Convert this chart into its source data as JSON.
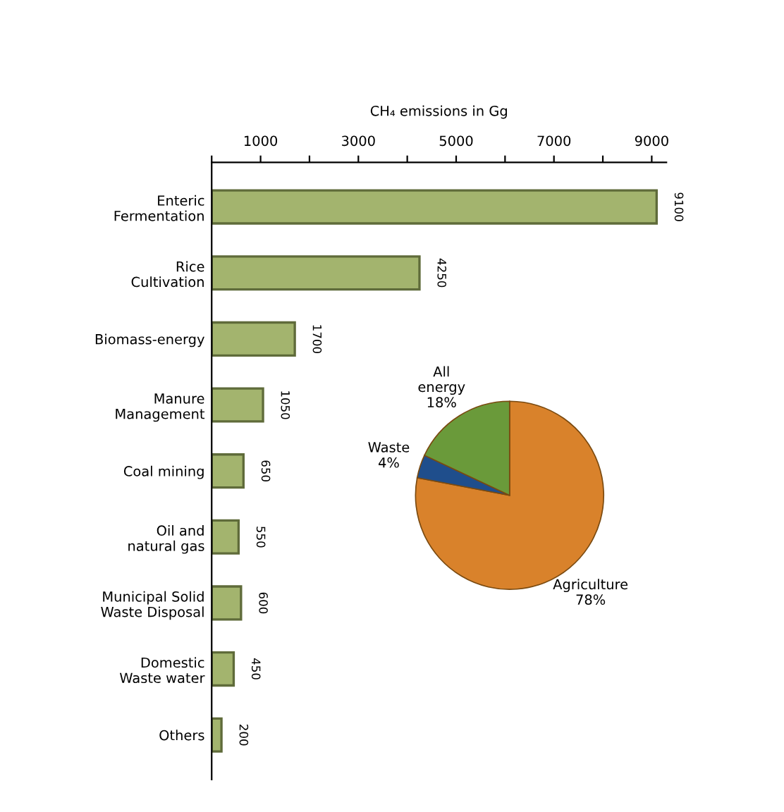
{
  "chart_data": [
    {
      "type": "bar",
      "orientation": "horizontal",
      "xlabel": "CH₄ emissions in Gg",
      "categories": [
        "Enteric\nFermentation",
        "Rice\nCultivation",
        "Biomass-energy",
        "Manure\nManagement",
        "Coal mining",
        "Oil and\nnatural gas",
        "Municipal Solid\nWaste Disposal",
        "Domestic\nWaste water",
        "Others"
      ],
      "values": [
        9100,
        4250,
        1700,
        1050,
        650,
        550,
        600,
        450,
        200
      ],
      "color": "#a3b46e",
      "xlim": [
        0,
        9300
      ],
      "xticks": [
        {
          "value": 0,
          "label": null
        },
        1000,
        {
          "value": 2000,
          "label": null
        },
        3000,
        {
          "value": 4000,
          "label": null
        },
        5000,
        {
          "value": 6000,
          "label": null
        },
        7000,
        {
          "value": 8000,
          "label": null
        },
        9000
      ],
      "data_labels": true,
      "grid": false,
      "legend": false
    },
    {
      "type": "pie",
      "categories": [
        "Agriculture\n78%",
        "Waste\n4%",
        "All\nenergy\n18%"
      ],
      "values": [
        78,
        4,
        18
      ],
      "colors": [
        "#d9822b",
        "#1f4e8c",
        "#6a9a3a"
      ]
    }
  ]
}
